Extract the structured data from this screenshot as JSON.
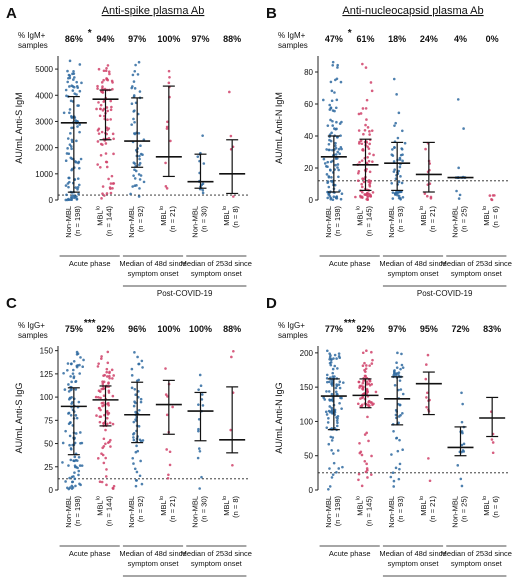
{
  "colors": {
    "non_mbl": "#2f6aa0",
    "mbl": "#d0426a",
    "axis": "#222222"
  },
  "chart_data": [
    {
      "type": "scatter",
      "panel_letter": "A",
      "title": "Anti-spike plasma Ab",
      "ylabel": "AU/mL Anti-S IgM",
      "pct_label": "% IgM+\nsamples",
      "ylim": [
        0,
        5500
      ],
      "yticks": [
        0,
        1000,
        2000,
        3000,
        4000,
        5000
      ],
      "threshold": 190,
      "categories": [
        "Non-MBL",
        "MBL",
        "Non-MBL",
        "MBL",
        "Non-MBL",
        "MBL"
      ],
      "category_n": [
        "(n = 198)",
        "(n = 144)",
        "(n = 92)",
        "(n = 21)",
        "(n = 30)",
        "(n = 8)"
      ],
      "percents": [
        "86%",
        "94%",
        "97%",
        "100%",
        "97%",
        "88%"
      ],
      "significance": [
        {
          "between": [
            0,
            1
          ],
          "label": "*"
        }
      ],
      "medians": [
        2950,
        3850,
        2250,
        1650,
        700,
        1000
      ],
      "iqr": [
        [
          300,
          3950
        ],
        [
          2300,
          4200
        ],
        [
          1250,
          3900
        ],
        [
          900,
          4350
        ],
        [
          450,
          1750
        ],
        [
          250,
          2300
        ]
      ],
      "groups": [
        "Acute phase",
        "Median of 48d since\nsymptom onset",
        "Median of 253d since\nsymptom onset"
      ],
      "supergroup": "Post-COVID-19"
    },
    {
      "type": "scatter",
      "panel_letter": "B",
      "title": "Anti-nucleocapsid plasma Ab",
      "ylabel": "AU/mL Anti-N IgM",
      "pct_label": "% IgM+\nsamples",
      "ylim": [
        0,
        90
      ],
      "yticks": [
        0,
        20,
        40,
        60,
        80
      ],
      "threshold": 12,
      "categories": [
        "Non-MBL",
        "MBL",
        "Non-MBL",
        "MBL",
        "Non-MBL",
        "MBL"
      ],
      "category_n": [
        "(n = 198)",
        "(n = 145)",
        "(n = 93)",
        "(n = 21)",
        "(n = 25)",
        "(n = 6)"
      ],
      "percents": [
        "47%",
        "61%",
        "18%",
        "24%",
        "4%",
        "0%"
      ],
      "significance": [
        {
          "between": [
            0,
            1
          ],
          "label": "*"
        }
      ],
      "medians": [
        27,
        22,
        23,
        16,
        14,
        null
      ],
      "iqr": [
        [
          5,
          40
        ],
        [
          6,
          38
        ],
        [
          6,
          36
        ],
        [
          5,
          36
        ],
        [
          14,
          14
        ],
        null
      ],
      "groups": [
        "Acute phase",
        "Median of 48d since\nsymptom onset",
        "Median of 253d since\nsymptom onset"
      ],
      "supergroup": "Post-COVID-19"
    },
    {
      "type": "scatter",
      "panel_letter": "C",
      "title": "",
      "ylabel": "AU/mL Anti-S IgG",
      "pct_label": "% IgG+\nsamples",
      "ylim": [
        0,
        155
      ],
      "yticks": [
        0,
        25,
        50,
        75,
        100,
        125,
        150
      ],
      "threshold": 12,
      "categories": [
        "Non-MBL",
        "MBL",
        "Non-MBL",
        "MBL",
        "Non-MBL",
        "MBL"
      ],
      "category_n": [
        "(n = 198)",
        "(n = 144)",
        "(n = 92)",
        "(n = 21)",
        "(n = 30)",
        "(n = 8)"
      ],
      "percents": [
        "75%",
        "92%",
        "96%",
        "100%",
        "100%",
        "88%"
      ],
      "significance": [
        {
          "between": [
            0,
            1
          ],
          "label": "***"
        }
      ],
      "medians": [
        90,
        97,
        81,
        92,
        85,
        54
      ],
      "iqr": [
        [
          38,
          110
        ],
        [
          69,
          112
        ],
        [
          51,
          116
        ],
        [
          60,
          118
        ],
        [
          53,
          105
        ],
        [
          40,
          111
        ]
      ],
      "groups": [
        "Acute phase",
        "Median of 48d since\nsymptom onset",
        "Median of 253d since\nsymptom onset"
      ],
      "supergroup": "Post-COVID-19"
    },
    {
      "type": "scatter",
      "panel_letter": "D",
      "title": "",
      "ylabel": "AU/mL Anti-N IgG",
      "pct_label": "% IgG+\nsamples",
      "ylim": [
        0,
        210
      ],
      "yticks": [
        0,
        50,
        100,
        150,
        200
      ],
      "threshold": 25,
      "categories": [
        "Non-MBL",
        "MBL",
        "Non-MBL",
        "MBL",
        "Non-MBL",
        "MBL"
      ],
      "category_n": [
        "(n = 198)",
        "(n = 145)",
        "(n = 93)",
        "(n = 21)",
        "(n = 25)",
        "(n = 6)"
      ],
      "percents": [
        "77%",
        "92%",
        "97%",
        "95%",
        "72%",
        "83%"
      ],
      "significance": [
        {
          "between": [
            0,
            1
          ],
          "label": "***"
        }
      ],
      "medians": [
        137,
        138,
        133,
        155,
        62,
        105
      ],
      "iqr": [
        [
          88,
          162
        ],
        [
          120,
          162
        ],
        [
          95,
          165
        ],
        [
          110,
          172
        ],
        [
          50,
          92
        ],
        [
          78,
          135
        ]
      ],
      "groups": [
        "Acute phase",
        "Median of 48d since\nsymptom onset",
        "Median of 253d since\nsymptom onset"
      ],
      "supergroup": "Post-COVID-19"
    }
  ]
}
